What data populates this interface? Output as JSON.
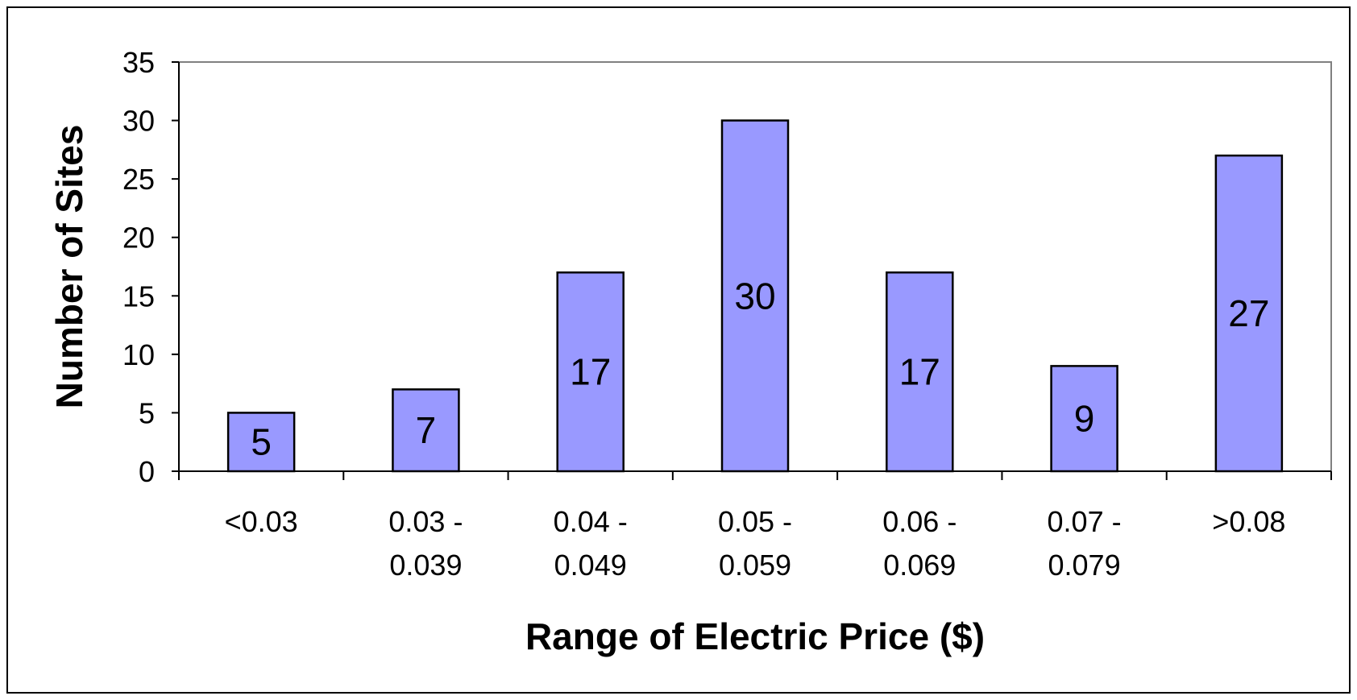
{
  "chart_data": {
    "type": "bar",
    "title": "",
    "xlabel": "Range of Electric Price ($)",
    "ylabel": "Number of Sites",
    "categories": [
      [
        "<0.03"
      ],
      [
        "0.03 -",
        "0.039"
      ],
      [
        "0.04 -",
        "0.049"
      ],
      [
        "0.05 -",
        "0.059"
      ],
      [
        "0.06 -",
        "0.069"
      ],
      [
        "0.07 -",
        "0.079"
      ],
      [
        ">0.08"
      ]
    ],
    "values": [
      5,
      7,
      17,
      30,
      17,
      9,
      27
    ],
    "ylim": [
      0,
      35
    ],
    "yticks": [
      0,
      5,
      10,
      15,
      20,
      25,
      30,
      35
    ],
    "grid": false,
    "legend": "none",
    "bar_color": "#9999ff",
    "bar_edge_color": "#000000",
    "axis_color": "#808080"
  }
}
